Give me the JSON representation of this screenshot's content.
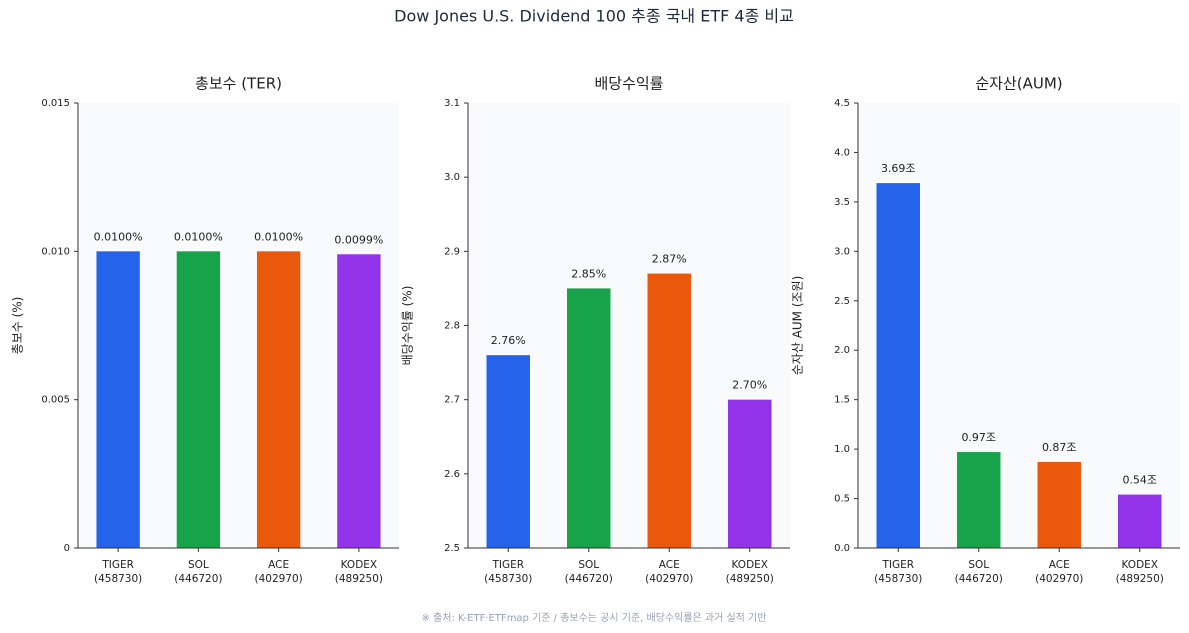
{
  "title": "Dow Jones U.S. Dividend 100 추종 국내 ETF 4종 비교",
  "note": "※ 출처: K-ETF·ETFmap 기준 / 총보수는 공시 기준, 배당수익률은 과거 실적 기반",
  "chart_data": [
    {
      "type": "bar",
      "title": "총보수 (TER)",
      "y_label": "총보수 (%)",
      "categories": [
        "TIGER\n(458730)",
        "SOL\n(446720)",
        "ACE\n(402970)",
        "KODEX\n(489250)"
      ],
      "values": [
        0.01,
        0.01,
        0.01,
        0.0099
      ],
      "value_labels": [
        "0.0100%",
        "0.0100%",
        "0.0100%",
        "0.0099%"
      ],
      "colors": [
        "#2563eb",
        "#16a34a",
        "#ea580c",
        "#9333ea"
      ],
      "ylim": [
        0,
        0.015
      ],
      "yticks": [
        0,
        0.005,
        {
          "value": 0.01,
          "label": "0.010"
        },
        0.015
      ]
    },
    {
      "type": "bar",
      "title": "배당수익률",
      "y_label": "배당수익률 (%)",
      "categories": [
        "TIGER\n(458730)",
        "SOL\n(446720)",
        "ACE\n(402970)",
        "KODEX\n(489250)"
      ],
      "values": [
        2.76,
        2.85,
        2.87,
        2.7
      ],
      "value_labels": [
        "2.76%",
        "2.85%",
        "2.87%",
        "2.70%"
      ],
      "colors": [
        "#2563eb",
        "#16a34a",
        "#ea580c",
        "#9333ea"
      ],
      "ylim": [
        2.5,
        3.1
      ],
      "yticks": [
        2.5,
        2.6,
        2.7,
        2.8,
        2.9,
        {
          "value": 3,
          "label": "3.0"
        },
        3.1
      ]
    },
    {
      "type": "bar",
      "title": "순자산(AUM)",
      "y_label": "순자산 AUM (조원)",
      "categories": [
        "TIGER\n(458730)",
        "SOL\n(446720)",
        "ACE\n(402970)",
        "KODEX\n(489250)"
      ],
      "values": [
        3.69,
        0.97,
        0.87,
        0.54
      ],
      "value_labels": [
        "3.69조",
        "0.97조",
        "0.87조",
        "0.54조"
      ],
      "colors": [
        "#2563eb",
        "#16a34a",
        "#ea580c",
        "#9333ea"
      ],
      "ylim": [
        0,
        4.5
      ],
      "yticks": [
        {
          "value": 0,
          "label": "0.0"
        },
        0.5,
        {
          "value": 1,
          "label": "1.0"
        },
        1.5,
        {
          "value": 2,
          "label": "2.0"
        },
        2.5,
        {
          "value": 3,
          "label": "3.0"
        },
        3.5,
        {
          "value": 4,
          "label": "4.0"
        },
        4.5
      ]
    }
  ]
}
